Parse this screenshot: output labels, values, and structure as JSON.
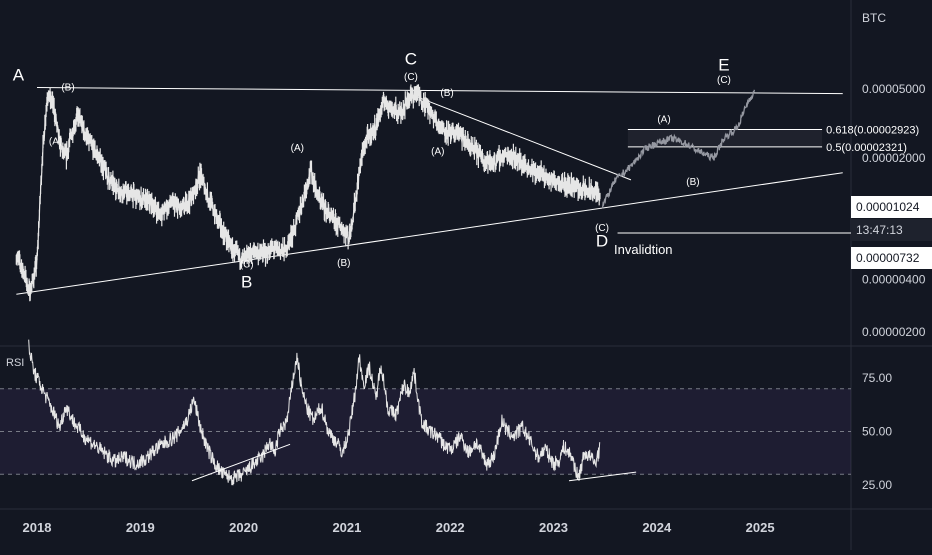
{
  "chart_data": [
    {
      "type": "line",
      "title": "",
      "quote_unit": "BTC",
      "scale": "log",
      "x_ticks": [
        "2018",
        "2019",
        "2020",
        "2021",
        "2022",
        "2023",
        "2024",
        "2025"
      ],
      "y_ticks": [
        {
          "label": "0.00005000",
          "value": 5e-05
        },
        {
          "label": "0.00002000",
          "value": 2e-05
        },
        {
          "label": "0.00000400",
          "value": 4e-06
        },
        {
          "label": "0.00000200",
          "value": 2e-06
        }
      ],
      "current_price": "0.00001024",
      "countdown": "13:47:13",
      "invalidation_price": "0.00000732",
      "price_series": {
        "start_year": 2017.8,
        "end_year": 2023.45,
        "anchors": [
          [
            2017.8,
            5.5e-06
          ],
          [
            2017.87,
            4.5e-06
          ],
          [
            2017.93,
            3.3e-06
          ],
          [
            2018.0,
            5e-06
          ],
          [
            2018.05,
            2e-05
          ],
          [
            2018.1,
            4.6e-05
          ],
          [
            2018.16,
            4e-05
          ],
          [
            2018.22,
            2.4e-05
          ],
          [
            2018.28,
            2e-05
          ],
          [
            2018.35,
            3e-05
          ],
          [
            2018.4,
            3.5e-05
          ],
          [
            2018.46,
            2.8e-05
          ],
          [
            2018.52,
            2.4e-05
          ],
          [
            2018.6,
            2e-05
          ],
          [
            2018.7,
            1.5e-05
          ],
          [
            2018.8,
            1.3e-05
          ],
          [
            2018.95,
            1.2e-05
          ],
          [
            2019.1,
            1.1e-05
          ],
          [
            2019.2,
            9.5e-06
          ],
          [
            2019.3,
            1.1e-05
          ],
          [
            2019.4,
            1e-05
          ],
          [
            2019.5,
            1.2e-05
          ],
          [
            2019.58,
            1.6e-05
          ],
          [
            2019.68,
            1.1e-05
          ],
          [
            2019.78,
            8e-06
          ],
          [
            2019.9,
            5.8e-06
          ],
          [
            2020.0,
            5.2e-06
          ],
          [
            2020.1,
            5.8e-06
          ],
          [
            2020.2,
            5.6e-06
          ],
          [
            2020.3,
            6e-06
          ],
          [
            2020.4,
            5.8e-06
          ],
          [
            2020.5,
            8e-06
          ],
          [
            2020.58,
            1.2e-05
          ],
          [
            2020.65,
            1.7e-05
          ],
          [
            2020.72,
            1.2e-05
          ],
          [
            2020.8,
            1e-05
          ],
          [
            2020.88,
            8.5e-06
          ],
          [
            2020.95,
            8e-06
          ],
          [
            2021.02,
            7e-06
          ],
          [
            2021.08,
            1.1e-05
          ],
          [
            2021.14,
            2e-05
          ],
          [
            2021.2,
            2.6e-05
          ],
          [
            2021.28,
            3e-05
          ],
          [
            2021.36,
            4.3e-05
          ],
          [
            2021.44,
            3.8e-05
          ],
          [
            2021.52,
            3.6e-05
          ],
          [
            2021.6,
            4.5e-05
          ],
          [
            2021.68,
            4.7e-05
          ],
          [
            2021.76,
            4.1e-05
          ],
          [
            2021.84,
            3.4e-05
          ],
          [
            2021.92,
            3e-05
          ],
          [
            2022.0,
            2.7e-05
          ],
          [
            2022.08,
            2.8e-05
          ],
          [
            2022.16,
            2.4e-05
          ],
          [
            2022.24,
            2.2e-05
          ],
          [
            2022.32,
            2e-05
          ],
          [
            2022.4,
            1.85e-05
          ],
          [
            2022.48,
            2e-05
          ],
          [
            2022.56,
            2.1e-05
          ],
          [
            2022.64,
            2e-05
          ],
          [
            2022.72,
            1.8e-05
          ],
          [
            2022.8,
            1.7e-05
          ],
          [
            2022.88,
            1.6e-05
          ],
          [
            2022.96,
            1.5e-05
          ],
          [
            2023.04,
            1.5e-05
          ],
          [
            2023.12,
            1.4e-05
          ],
          [
            2023.2,
            1.4e-05
          ],
          [
            2023.28,
            1.3e-05
          ],
          [
            2023.36,
            1.28e-05
          ],
          [
            2023.45,
            1.25e-05
          ]
        ]
      },
      "projection_path": [
        [
          2023.47,
          1.05e-05
        ],
        [
          2023.6,
          1.5e-05
        ],
        [
          2023.75,
          1.8e-05
        ],
        [
          2023.9,
          2.3e-05
        ],
        [
          2024.05,
          2.5e-05
        ],
        [
          2024.15,
          2.6e-05
        ],
        [
          2024.3,
          2.4e-05
        ],
        [
          2024.4,
          2.2e-05
        ],
        [
          2024.55,
          2e-05
        ],
        [
          2024.65,
          2.6e-05
        ],
        [
          2024.78,
          3e-05
        ],
        [
          2024.88,
          4.2e-05
        ],
        [
          2024.95,
          4.9e-05
        ]
      ],
      "trendlines": [
        {
          "from": [
            2018.0,
            5.1e-05
          ],
          "to": [
            2025.8,
            4.7e-05
          ]
        },
        {
          "from": [
            2017.8,
            3.3e-06
          ],
          "to": [
            2025.8,
            1.65e-05
          ]
        },
        {
          "from": [
            2021.6,
            4.7e-05
          ],
          "to": [
            2023.75,
            1.5e-05
          ]
        }
      ],
      "fib_levels": [
        {
          "label": "0.618(0.00002923)",
          "value": 2.923e-05
        },
        {
          "label": "0.5(0.00002321)",
          "value": 2.321e-05
        }
      ],
      "invalidation_label": "Invalidtion",
      "wave_labels": [
        {
          "text": "A",
          "x": 2017.82,
          "y": 5.6e-05,
          "major": true
        },
        {
          "text": "(B)",
          "x": 2018.3,
          "y": 4.9e-05,
          "major": false
        },
        {
          "text": "(A)",
          "x": 2018.18,
          "y": 2.4e-05,
          "major": false
        },
        {
          "text": "(A)",
          "x": 2020.52,
          "y": 2.2e-05,
          "major": false
        },
        {
          "text": "(C)",
          "x": 2020.03,
          "y": 4.7e-06,
          "major": false
        },
        {
          "text": "B",
          "x": 2020.03,
          "y": 3.6e-06,
          "major": true
        },
        {
          "text": "(B)",
          "x": 2020.97,
          "y": 4.8e-06,
          "major": false
        },
        {
          "text": "C",
          "x": 2021.62,
          "y": 6.9e-05,
          "major": true
        },
        {
          "text": "(C)",
          "x": 2021.62,
          "y": 5.65e-05,
          "major": false
        },
        {
          "text": "(B)",
          "x": 2021.97,
          "y": 4.55e-05,
          "major": false
        },
        {
          "text": "(A)",
          "x": 2021.88,
          "y": 2.1e-05,
          "major": false
        },
        {
          "text": "(C)",
          "x": 2023.47,
          "y": 7.6e-06,
          "major": false
        },
        {
          "text": "D",
          "x": 2023.47,
          "y": 6.2e-06,
          "major": true
        },
        {
          "text": "(A)",
          "x": 2024.07,
          "y": 3.2e-05,
          "major": false
        },
        {
          "text": "(B)",
          "x": 2024.35,
          "y": 1.4e-05,
          "major": false
        },
        {
          "text": "E",
          "x": 2024.65,
          "y": 6.4e-05,
          "major": true
        },
        {
          "text": "(C)",
          "x": 2024.65,
          "y": 5.4e-05,
          "major": false
        }
      ]
    },
    {
      "type": "line",
      "title": "",
      "series_label": "RSI",
      "y_ticks": [
        75,
        50,
        25
      ],
      "y_tick_labels": [
        "75.00",
        "50.00",
        "25.00"
      ],
      "band": [
        30,
        70
      ],
      "midline": 50,
      "rsi_series": {
        "anchors": [
          [
            2017.92,
            90
          ],
          [
            2017.97,
            78
          ],
          [
            2018.05,
            70
          ],
          [
            2018.15,
            60
          ],
          [
            2018.22,
            52
          ],
          [
            2018.28,
            62
          ],
          [
            2018.35,
            55
          ],
          [
            2018.45,
            48
          ],
          [
            2018.55,
            44
          ],
          [
            2018.65,
            40
          ],
          [
            2018.75,
            36
          ],
          [
            2018.85,
            38
          ],
          [
            2018.95,
            35
          ],
          [
            2019.05,
            37
          ],
          [
            2019.15,
            42
          ],
          [
            2019.25,
            45
          ],
          [
            2019.35,
            48
          ],
          [
            2019.45,
            55
          ],
          [
            2019.52,
            65
          ],
          [
            2019.58,
            52
          ],
          [
            2019.65,
            42
          ],
          [
            2019.72,
            35
          ],
          [
            2019.8,
            30
          ],
          [
            2019.9,
            28
          ],
          [
            2020.0,
            30
          ],
          [
            2020.1,
            35
          ],
          [
            2020.18,
            38
          ],
          [
            2020.25,
            45
          ],
          [
            2020.3,
            40
          ],
          [
            2020.35,
            50
          ],
          [
            2020.42,
            55
          ],
          [
            2020.48,
            75
          ],
          [
            2020.52,
            85
          ],
          [
            2020.56,
            70
          ],
          [
            2020.62,
            60
          ],
          [
            2020.68,
            55
          ],
          [
            2020.75,
            62
          ],
          [
            2020.82,
            50
          ],
          [
            2020.9,
            45
          ],
          [
            2020.96,
            40
          ],
          [
            2021.02,
            50
          ],
          [
            2021.08,
            68
          ],
          [
            2021.12,
            85
          ],
          [
            2021.16,
            72
          ],
          [
            2021.22,
            80
          ],
          [
            2021.28,
            65
          ],
          [
            2021.33,
            82
          ],
          [
            2021.4,
            60
          ],
          [
            2021.48,
            58
          ],
          [
            2021.55,
            72
          ],
          [
            2021.6,
            68
          ],
          [
            2021.65,
            78
          ],
          [
            2021.72,
            55
          ],
          [
            2021.8,
            50
          ],
          [
            2021.88,
            48
          ],
          [
            2021.95,
            43
          ],
          [
            2022.02,
            42
          ],
          [
            2022.1,
            48
          ],
          [
            2022.18,
            40
          ],
          [
            2022.25,
            45
          ],
          [
            2022.35,
            35
          ],
          [
            2022.42,
            38
          ],
          [
            2022.5,
            55
          ],
          [
            2022.55,
            50
          ],
          [
            2022.62,
            48
          ],
          [
            2022.7,
            52
          ],
          [
            2022.78,
            45
          ],
          [
            2022.85,
            38
          ],
          [
            2022.92,
            42
          ],
          [
            2023.0,
            35
          ],
          [
            2023.05,
            36
          ],
          [
            2023.1,
            43
          ],
          [
            2023.18,
            38
          ],
          [
            2023.24,
            28
          ],
          [
            2023.3,
            40
          ],
          [
            2023.36,
            38
          ],
          [
            2023.4,
            35
          ],
          [
            2023.45,
            42
          ]
        ]
      },
      "trendlines": [
        {
          "from": [
            2019.5,
            27
          ],
          "to": [
            2020.45,
            44
          ]
        },
        {
          "from": [
            2023.15,
            27
          ],
          "to": [
            2023.8,
            31
          ]
        }
      ]
    }
  ]
}
